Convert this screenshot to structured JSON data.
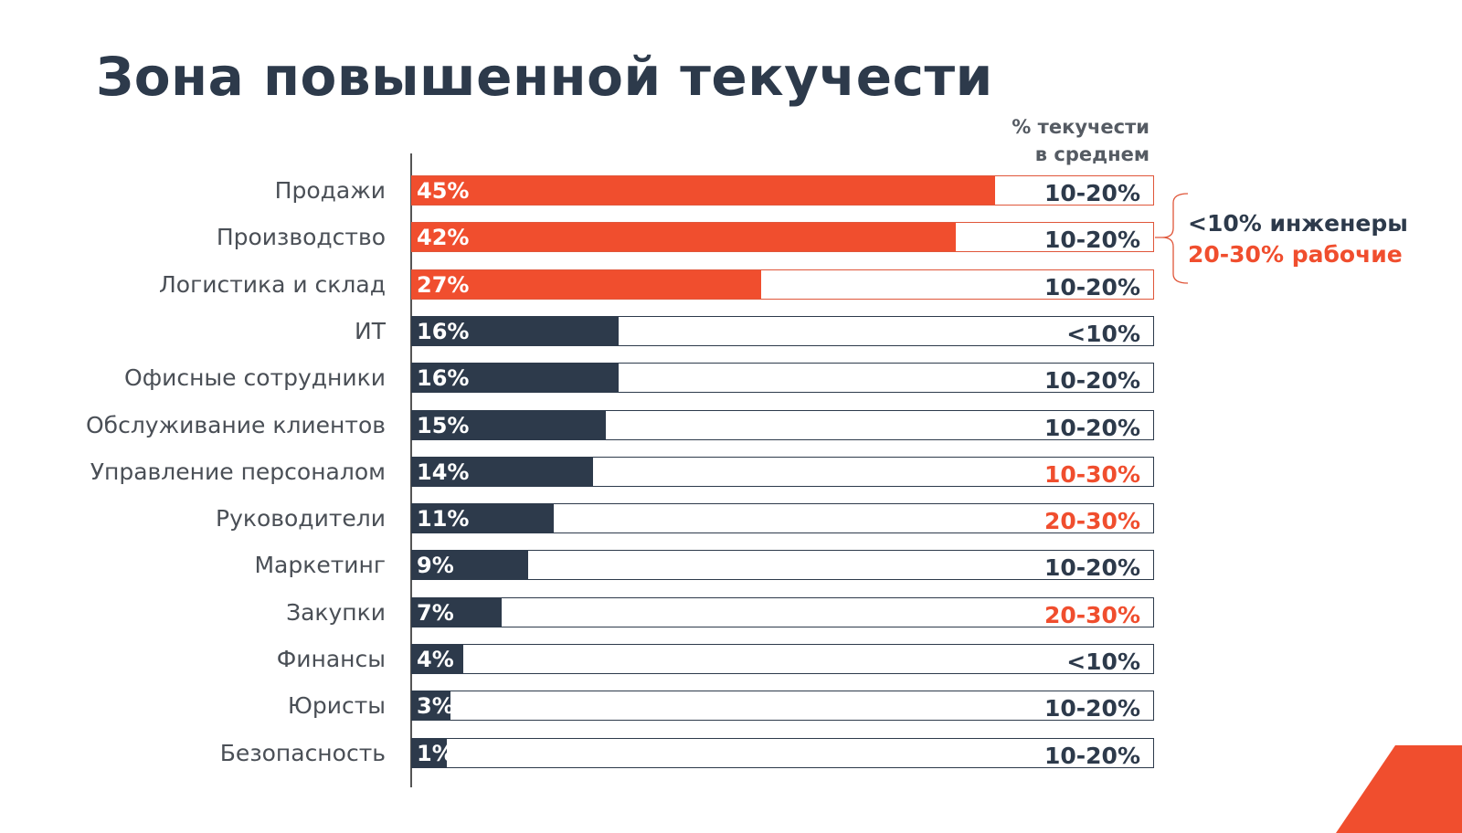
{
  "title": "Зона повышенной текучести",
  "column_header": [
    "% текучести",
    "в среднем"
  ],
  "colors": {
    "highlight": "#f04e2e",
    "dark": "#2d3a4b"
  },
  "chart_data": {
    "type": "bar",
    "orientation": "horizontal",
    "title": "Зона повышенной текучести",
    "categories": [
      "Продажи",
      "Производство",
      "Логистика и склад",
      "ИТ",
      "Офисные сотрудники",
      "Обслуживание клиентов",
      "Управление персоналом",
      "Руководители",
      "Маркетинг",
      "Закупки",
      "Финансы",
      "Юристы",
      "Безопасность"
    ],
    "values": [
      45,
      42,
      27,
      16,
      16,
      15,
      14,
      11,
      9,
      7,
      4,
      3,
      1
    ],
    "value_labels": [
      "45%",
      "42%",
      "27%",
      "16%",
      "16%",
      "15%",
      "14%",
      "11%",
      "9%",
      "7%",
      "4%",
      "3%",
      "1%"
    ],
    "highlighted": [
      true,
      true,
      true,
      false,
      false,
      false,
      false,
      false,
      false,
      false,
      false,
      false,
      false
    ],
    "average_labels": [
      "10-20%",
      "10-20%",
      "10-20%",
      "<10%",
      "10-20%",
      "10-20%",
      "10-30%",
      "20-30%",
      "10-20%",
      "20-30%",
      "<10%",
      "10-20%",
      "10-20%"
    ],
    "average_highlighted": [
      false,
      false,
      false,
      false,
      false,
      false,
      true,
      true,
      false,
      true,
      false,
      false,
      false
    ],
    "xlim": [
      0,
      57
    ],
    "grid": false
  },
  "note": {
    "line1": "<10% инженеры",
    "line2": "20-30% рабочие"
  }
}
